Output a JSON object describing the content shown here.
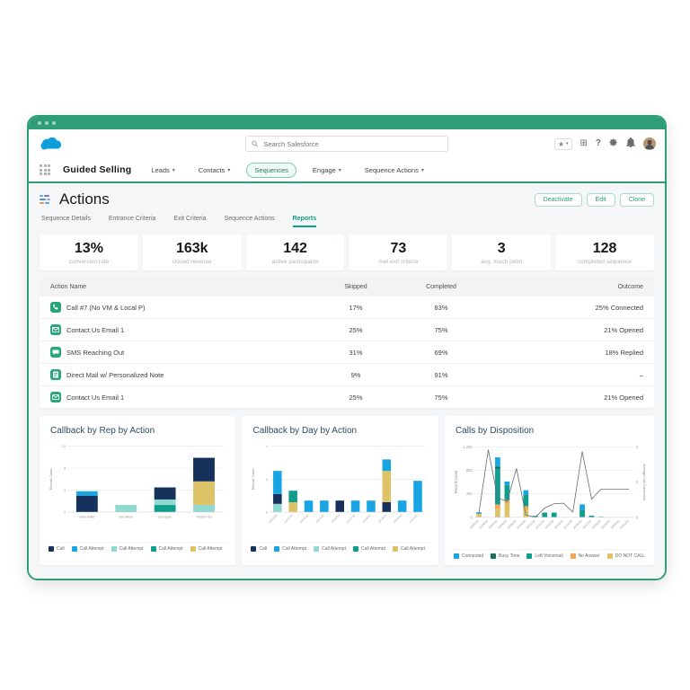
{
  "window": {
    "titlebar_dots": 3
  },
  "header": {
    "search_placeholder": "Search Salesforce",
    "help_label": "?"
  },
  "nav": {
    "app_name": "Guided Selling",
    "tabs": [
      {
        "label": "Leads",
        "caret": true,
        "active": false
      },
      {
        "label": "Contacts",
        "caret": true,
        "active": false
      },
      {
        "label": "Sequences",
        "caret": false,
        "active": true
      },
      {
        "label": "Engage",
        "caret": true,
        "active": false
      },
      {
        "label": "Sequence Actions",
        "caret": true,
        "active": false
      }
    ]
  },
  "page": {
    "title": "Actions",
    "action_buttons": [
      "Deactivate",
      "Edit",
      "Clone"
    ],
    "tabs": [
      "Sequence Details",
      "Entrance Criteria",
      "Exit Criteria",
      "Sequence Actions",
      "Reports"
    ],
    "active_tab": "Reports"
  },
  "kpis": [
    {
      "value": "13%",
      "label": "conversion rate"
    },
    {
      "value": "163k",
      "label": "closed revenue"
    },
    {
      "value": "142",
      "label": "active participants"
    },
    {
      "value": "73",
      "label": "met exit criteria"
    },
    {
      "value": "3",
      "label": "avg. touch point"
    },
    {
      "value": "128",
      "label": "completed sequence"
    }
  ],
  "table": {
    "headers": [
      "Action Name",
      "Skipped",
      "Completed",
      "Outcome"
    ],
    "rows": [
      {
        "icon": "phone",
        "name": "Call #7 (No VM & Local P)",
        "skipped": "17%",
        "completed": "83%",
        "outcome": "25% Connected"
      },
      {
        "icon": "email",
        "name": "Contact Us Email 1",
        "skipped": "25%",
        "completed": "75%",
        "outcome": "21% Opened"
      },
      {
        "icon": "sms",
        "name": "SMS Reaching Out",
        "skipped": "31%",
        "completed": "69%",
        "outcome": "18% Replied"
      },
      {
        "icon": "mail",
        "name": "Direct Mail w/ Personalized Note",
        "skipped": "9%",
        "completed": "91%",
        "outcome": "–"
      },
      {
        "icon": "email",
        "name": "Contact Us Email 1",
        "skipped": "25%",
        "completed": "75%",
        "outcome": "21% Opened"
      }
    ]
  },
  "palette": {
    "navy": "#16325c",
    "blue": "#19a5e4",
    "lightteal": "#8fd9cf",
    "teal": "#0f9e8e",
    "gold": "#ddc268",
    "dgreen": "#17735a",
    "orange": "#f2a44e",
    "icon_green": "#27a677",
    "line": "#6b7075",
    "accent": "#2f9e77",
    "logo_blue": "#0d9dda"
  },
  "chart_data": [
    {
      "type": "bar",
      "stacked": true,
      "title": "Callback by Rep by Action",
      "ylabel": "Record Count",
      "ymax": 12,
      "yticks": [
        12,
        8,
        4,
        0
      ],
      "ytick_labels": [
        "12",
        "8",
        "4",
        "0"
      ],
      "categories": [
        "Mari Willis",
        "Gus Arlon",
        "Zee Igwe",
        "Amber Hui"
      ],
      "stacks": [
        [
          [
            "navy",
            3.0
          ],
          [
            "blue",
            0.8
          ]
        ],
        [
          [
            "lightteal",
            1.3
          ]
        ],
        [
          [
            "teal",
            1.3
          ],
          [
            "lightteal",
            1.0
          ],
          [
            "navy",
            2.2
          ]
        ],
        [
          [
            "lightteal",
            1.3
          ],
          [
            "gold",
            4.3
          ],
          [
            "navy",
            4.3
          ]
        ]
      ],
      "legend": [
        [
          "navy",
          "Call"
        ],
        [
          "blue",
          "Call Attempt"
        ],
        [
          "lightteal",
          "Call Attempt"
        ],
        [
          "teal",
          "Call Attempt"
        ],
        [
          "gold",
          "Call Attempt"
        ]
      ],
      "rotate_xlabels": false
    },
    {
      "type": "bar",
      "stacked": true,
      "title": "Callback by Day by Action",
      "ylabel": "Record Count",
      "ymax": 4,
      "yticks": [
        4,
        2,
        0
      ],
      "ytick_labels": [
        "4",
        "2",
        "0"
      ],
      "categories": [
        "10/12/20",
        "10/13/20",
        "10/14/20",
        "10/15/20",
        "10/16/20",
        "10/17/20",
        "10/18/20",
        "10/19/20",
        "10/20/20",
        "10/21/20"
      ],
      "stacks": [
        [
          [
            "lightteal",
            0.5
          ],
          [
            "navy",
            0.6
          ],
          [
            "blue",
            1.4
          ]
        ],
        [
          [
            "gold",
            0.6
          ],
          [
            "teal",
            0.7
          ]
        ],
        [
          [
            "blue",
            0.7
          ]
        ],
        [
          [
            "blue",
            0.7
          ]
        ],
        [
          [
            "navy",
            0.7
          ]
        ],
        [
          [
            "blue",
            0.7
          ]
        ],
        [
          [
            "blue",
            0.7
          ]
        ],
        [
          [
            "navy",
            0.6
          ],
          [
            "gold",
            1.9
          ],
          [
            "blue",
            0.7
          ]
        ],
        [
          [
            "blue",
            0.7
          ]
        ],
        [
          [
            "blue",
            1.9
          ]
        ]
      ],
      "legend": [
        [
          "navy",
          "Call"
        ],
        [
          "blue",
          "Call Attempt"
        ],
        [
          "lightteal",
          "Call Attempt"
        ],
        [
          "teal",
          "Call Attempt"
        ],
        [
          "gold",
          "Call Attempt"
        ]
      ],
      "rotate_xlabels": true
    },
    {
      "type": "combo",
      "stacked": true,
      "title": "Calls by Disposition",
      "ylabel": "Record Count",
      "y2label": "Average Call Connected",
      "ymax": 1200,
      "yticks": [
        1200,
        800,
        400,
        0
      ],
      "ytick_labels": [
        "1,200",
        "800",
        "400",
        "0"
      ],
      "y2ticks": [
        4,
        2,
        0
      ],
      "y2tick_labels": [
        "4",
        "2",
        "0"
      ],
      "categories": [
        "10/05/20",
        "10/06/20",
        "10/07/20",
        "10/08/20",
        "10/09/20",
        "10/10/20",
        "10/11/20",
        "10/12/20",
        "10/13/20",
        "10/14/20",
        "10/15/20",
        "10/16/20",
        "10/17/20",
        "10/18/20",
        "10/19/20",
        "10/20/20",
        "10/21/20"
      ],
      "stacks": [
        [
          [
            "gold",
            60
          ],
          [
            "blue",
            25
          ]
        ],
        [],
        [
          [
            "gold",
            150
          ],
          [
            "orange",
            70
          ],
          [
            "teal",
            600
          ],
          [
            "dgreen",
            40
          ],
          [
            "blue",
            160
          ]
        ],
        [
          [
            "gold",
            230
          ],
          [
            "orange",
            60
          ],
          [
            "teal",
            260
          ],
          [
            "blue",
            60
          ]
        ],
        [],
        [
          [
            "gold",
            140
          ],
          [
            "orange",
            50
          ],
          [
            "teal",
            200
          ],
          [
            "blue",
            70
          ]
        ],
        [
          [
            "teal",
            25
          ]
        ],
        [
          [
            "teal",
            80
          ]
        ],
        [
          [
            "teal",
            80
          ]
        ],
        [],
        [],
        [
          [
            "teal",
            120
          ],
          [
            "blue",
            100
          ]
        ],
        [
          [
            "teal",
            30
          ]
        ],
        [
          [
            "lightteal",
            15
          ]
        ],
        [],
        [],
        []
      ],
      "line": [
        70,
        1150,
        330,
        270,
        830,
        40,
        0,
        160,
        230,
        240,
        90,
        1120,
        310,
        480,
        480,
        480,
        480
      ],
      "legend": [
        [
          "blue",
          "Connected"
        ],
        [
          "dgreen",
          "Busy Tone"
        ],
        [
          "teal",
          "Left Voicemail"
        ],
        [
          "orange",
          "No Answer"
        ],
        [
          "gold",
          "DO NOT CALL"
        ]
      ],
      "rotate_xlabels": true
    }
  ]
}
